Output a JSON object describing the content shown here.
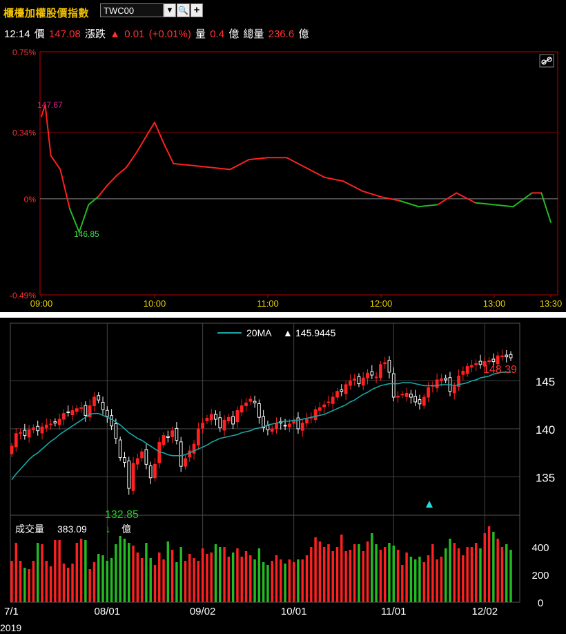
{
  "header": {
    "title": "櫃檯加權股價指數",
    "symbol": "TWC00",
    "time": "12:14",
    "price_label": "價",
    "price": "147.08",
    "change_label": "漲跌",
    "change_arrow": "▲",
    "change": "0.01",
    "change_pct": "(+0.01%)",
    "vol_label": "量",
    "vol": "0.4",
    "vol_unit": "億",
    "total_vol_label": "總量",
    "total_vol": "236.6",
    "total_vol_unit": "億"
  },
  "colors": {
    "up": "#ff2020",
    "down": "#22bb22",
    "ma": "#1aa6a6",
    "axis_red": "#ff3030",
    "time_yellow": "#e8d000"
  },
  "icons": {
    "link": "link-icon",
    "zoom": "search-zoom-icon",
    "add": "plus-icon",
    "dropdown": "chevron-down-icon"
  },
  "chart_data": [
    {
      "type": "line",
      "name": "intraday",
      "y_unit": "%",
      "y_ticks": [
        "0.75%",
        "0.34%",
        "0%",
        "-0.49%"
      ],
      "y_tick_values": [
        0.75,
        0.34,
        0,
        -0.49
      ],
      "ylim": [
        -0.49,
        0.75
      ],
      "x_ticks": [
        "09:00",
        "10:00",
        "11:00",
        "12:00",
        "13:00",
        "13:30"
      ],
      "high_label": "147.67",
      "low_label": "146.85",
      "x": [
        "09:00",
        "09:02",
        "09:05",
        "09:10",
        "09:15",
        "09:20",
        "09:25",
        "09:30",
        "09:35",
        "09:40",
        "09:45",
        "09:50",
        "09:55",
        "10:00",
        "10:05",
        "10:10",
        "10:20",
        "10:30",
        "10:40",
        "10:50",
        "11:00",
        "11:10",
        "11:20",
        "11:30",
        "11:40",
        "11:50",
        "12:00",
        "12:10",
        "12:20",
        "12:30",
        "12:40",
        "12:50",
        "13:00",
        "13:10",
        "13:20",
        "13:25",
        "13:30"
      ],
      "y": [
        0.42,
        0.48,
        0.22,
        0.15,
        -0.05,
        -0.17,
        -0.03,
        0.01,
        0.07,
        0.12,
        0.16,
        0.23,
        0.31,
        0.39,
        0.28,
        0.18,
        0.17,
        0.16,
        0.15,
        0.2,
        0.21,
        0.21,
        0.16,
        0.11,
        0.09,
        0.04,
        0.01,
        -0.01,
        -0.04,
        -0.03,
        0.03,
        -0.02,
        -0.03,
        -0.04,
        0.03,
        0.03,
        -0.12
      ]
    },
    {
      "type": "candlestick",
      "name": "daily",
      "x_ticks": [
        "7/1",
        "08/01",
        "09/02",
        "10/01",
        "11/01",
        "12/02"
      ],
      "year_label": "2019",
      "y_ticks": [
        "145",
        "140",
        "135"
      ],
      "y_tick_values": [
        145,
        140,
        135
      ],
      "ylim": [
        131,
        151
      ],
      "ma_label": "20MA",
      "ma_arrow": "▲",
      "ma_value": "145.9445",
      "high_label": "148.39",
      "low_label": "132.85",
      "close": [
        138.2,
        139.5,
        139.6,
        139.3,
        139.9,
        140.1,
        139.8,
        140.2,
        140.4,
        140.5,
        140.6,
        141.0,
        141.6,
        141.7,
        141.9,
        142.1,
        142.2,
        141.4,
        142.4,
        143.3,
        143.0,
        142.0,
        141.3,
        140.3,
        139.0,
        137.0,
        136.5,
        133.8,
        136.4,
        136.9,
        137.6,
        136.3,
        134.9,
        136.3,
        138.6,
        139.3,
        139.1,
        139.8,
        138.8,
        136.1,
        136.9,
        137.7,
        138.4,
        140.0,
        140.6,
        141.1,
        141.5,
        141.0,
        140.1,
        140.9,
        141.2,
        140.5,
        141.9,
        142.4,
        142.7,
        143.1,
        142.7,
        141.2,
        140.1,
        139.9,
        140.0,
        140.6,
        140.6,
        140.3,
        140.5,
        140.9,
        140.0,
        140.6,
        141.0,
        141.2,
        142.0,
        142.2,
        142.5,
        142.8,
        143.3,
        143.9,
        143.9,
        144.6,
        145.0,
        145.2,
        144.7,
        145.3,
        145.8,
        145.6,
        145.4,
        146.7,
        146.9,
        145.9,
        143.3,
        143.4,
        143.6,
        143.7,
        143.3,
        142.8,
        142.6,
        143.3,
        144.3,
        144.5,
        145.1,
        145.2,
        145.1,
        143.9,
        144.4,
        145.5,
        146.0,
        146.5,
        146.6,
        146.8,
        146.7,
        147.0,
        147.1,
        147.0,
        147.6,
        147.6,
        147.5,
        147.4
      ],
      "ma20": [
        134.7,
        135.3,
        135.8,
        136.3,
        136.8,
        137.2,
        137.5,
        137.9,
        138.3,
        138.7,
        139.0,
        139.4,
        139.7,
        140.0,
        140.3,
        140.6,
        140.9,
        141.2,
        141.5,
        141.6,
        141.6,
        141.4,
        141.2,
        141.0,
        140.7,
        140.4,
        140.0,
        139.6,
        139.3,
        139.0,
        138.8,
        138.5,
        138.2,
        137.9,
        137.6,
        137.5,
        137.3,
        137.2,
        137.2,
        137.2,
        137.3,
        137.5,
        137.7,
        137.9,
        138.1,
        138.3,
        138.6,
        138.8,
        139.0,
        139.1,
        139.2,
        139.3,
        139.4,
        139.6,
        139.7,
        139.8,
        140.0,
        140.1,
        140.2,
        140.4,
        140.5,
        140.6,
        140.7,
        140.8,
        140.8,
        140.9,
        140.9,
        141.0,
        141.1,
        141.2,
        141.3,
        141.4,
        141.5,
        141.7,
        141.9,
        142.1,
        142.3,
        142.5,
        142.8,
        143.0,
        143.3,
        143.6,
        143.8,
        144.1,
        144.3,
        144.5,
        144.6,
        144.7,
        144.7,
        144.7,
        144.8,
        144.8,
        144.8,
        144.7,
        144.6,
        144.5,
        144.5,
        144.5,
        144.5,
        144.6,
        144.6,
        144.6,
        144.5,
        144.6,
        144.7,
        144.8,
        145.0,
        145.1,
        145.3,
        145.4,
        145.5,
        145.7,
        145.8,
        145.9,
        145.9,
        145.9
      ],
      "volume_label": "成交量",
      "volume_value": "383.09",
      "volume_arrow": "↓",
      "volume_unit": "億",
      "volume_ticks": [
        "400",
        "200",
        "0"
      ],
      "volume_tick_values": [
        400,
        200,
        0
      ],
      "volume_max": 560,
      "volume": [
        300,
        430,
        300,
        250,
        240,
        300,
        430,
        420,
        300,
        260,
        450,
        450,
        280,
        250,
        280,
        430,
        460,
        450,
        240,
        290,
        350,
        340,
        300,
        320,
        420,
        480,
        460,
        430,
        410,
        360,
        320,
        430,
        320,
        270,
        360,
        310,
        440,
        380,
        290,
        400,
        300,
        350,
        320,
        300,
        390,
        350,
        360,
        420,
        400,
        400,
        330,
        360,
        390,
        330,
        370,
        340,
        310,
        390,
        290,
        270,
        300,
        340,
        310,
        280,
        310,
        290,
        310,
        310,
        340,
        400,
        470,
        440,
        400,
        420,
        370,
        400,
        490,
        370,
        380,
        420,
        420,
        370,
        440,
        500,
        420,
        380,
        400,
        430,
        410,
        380,
        270,
        360,
        330,
        310,
        330,
        290,
        340,
        420,
        310,
        330,
        390,
        460,
        430,
        390,
        340,
        400,
        400,
        430,
        390,
        500,
        550,
        510,
        460,
        400,
        420,
        380
      ]
    }
  ]
}
